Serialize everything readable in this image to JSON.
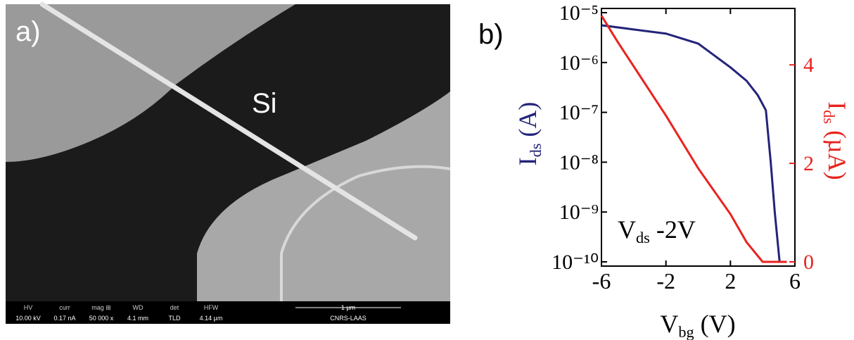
{
  "sem_image": {
    "panel_label": "a)",
    "region_label": "Si",
    "info_bar": [
      [
        "HV",
        "10.00 kV"
      ],
      [
        "curr",
        "0.17 nA"
      ],
      [
        "mag ⊞",
        "50 000 x"
      ],
      [
        "WD",
        "4.1 mm"
      ],
      [
        "det",
        "TLD"
      ],
      [
        "HFW",
        "4.14 µm"
      ]
    ],
    "scale_bar": "1 µm",
    "lab": "CNRS-LAAS"
  },
  "chart_data": {
    "type": "line",
    "panel_label": "b)",
    "x_label": {
      "main": "V",
      "sub": "bg",
      "rest": " (V)"
    },
    "y_label": {
      "main": "I",
      "sub": "ds",
      "rest": " (A)"
    },
    "y2_label": {
      "main": "I",
      "sub": "ds",
      "rest": " (µA)"
    },
    "annotation": {
      "main": "V",
      "sub": "ds",
      "rest": " -2V"
    },
    "xlim": [
      -6,
      6
    ],
    "xticks": [
      -6,
      -2,
      2,
      6
    ],
    "yscale": "log",
    "ylim": [
      1e-10,
      1e-05
    ],
    "yticks": [
      {
        "value": 1e-10,
        "label": "10⁻¹⁰"
      },
      {
        "value": 1e-09,
        "label": "10⁻⁹"
      },
      {
        "value": 1e-08,
        "label": "10⁻⁸"
      },
      {
        "value": 1e-07,
        "label": "10⁻⁷"
      },
      {
        "value": 1e-06,
        "label": "10⁻⁶"
      },
      {
        "value": 1e-05,
        "label": "10⁻⁵"
      }
    ],
    "y2lim": [
      0,
      5.06
    ],
    "y2ticks": [
      0,
      2,
      4
    ],
    "y2_color": "#e8231f",
    "series": [
      {
        "color": "#23237a",
        "axis": "y",
        "x": [
          -6,
          -4,
          -2,
          0,
          2,
          3,
          3.7,
          4.2,
          4.5,
          4.75,
          5.05
        ],
        "values": [
          5.6e-06,
          4.6e-06,
          3.8e-06,
          2.4e-06,
          8e-07,
          4.3e-07,
          2.2e-07,
          1.1e-07,
          1e-08,
          1e-09,
          1e-10
        ]
      },
      {
        "color": "#e8231f",
        "axis": "y2",
        "x": [
          -6,
          -5,
          -4,
          -2,
          0,
          2,
          3,
          4,
          5.5
        ],
        "values": [
          5.0,
          4.47,
          3.97,
          2.97,
          1.9,
          0.97,
          0.4,
          0.0,
          0.0
        ]
      }
    ]
  }
}
